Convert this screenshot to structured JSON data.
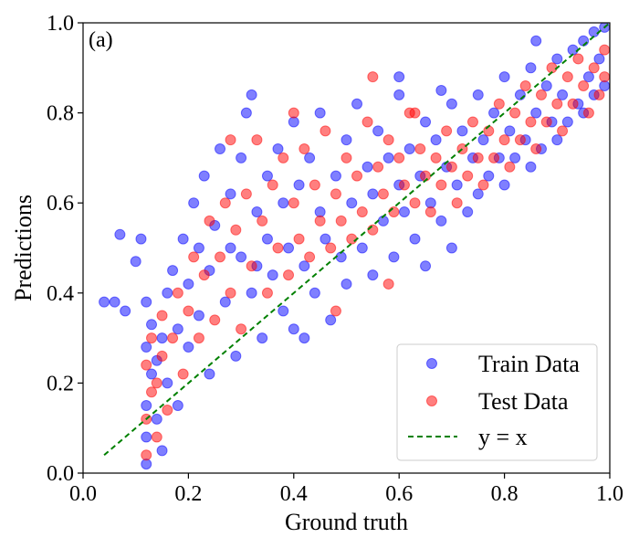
{
  "chart_data": {
    "type": "scatter",
    "panel_label": "(a)",
    "xlabel": "Ground truth",
    "ylabel": "Predictions",
    "xlim": [
      0.0,
      1.0
    ],
    "ylim": [
      0.0,
      1.0
    ],
    "xticks": [
      "0.0",
      "0.2",
      "0.4",
      "0.6",
      "0.8",
      "1.0"
    ],
    "yticks": [
      "0.0",
      "0.2",
      "0.4",
      "0.6",
      "0.8",
      "1.0"
    ],
    "grid": false,
    "legend_position": "lower-right",
    "series": [
      {
        "name": "Train Data",
        "color": "#0000ff",
        "marker": "circle",
        "alpha": 0.5,
        "points": [
          [
            0.12,
            0.02
          ],
          [
            0.12,
            0.08
          ],
          [
            0.12,
            0.15
          ],
          [
            0.13,
            0.22
          ],
          [
            0.12,
            0.28
          ],
          [
            0.13,
            0.33
          ],
          [
            0.12,
            0.38
          ],
          [
            0.14,
            0.12
          ],
          [
            0.14,
            0.25
          ],
          [
            0.15,
            0.05
          ],
          [
            0.15,
            0.3
          ],
          [
            0.16,
            0.2
          ],
          [
            0.16,
            0.4
          ],
          [
            0.17,
            0.45
          ],
          [
            0.18,
            0.15
          ],
          [
            0.18,
            0.32
          ],
          [
            0.19,
            0.52
          ],
          [
            0.2,
            0.28
          ],
          [
            0.2,
            0.42
          ],
          [
            0.21,
            0.6
          ],
          [
            0.22,
            0.35
          ],
          [
            0.22,
            0.5
          ],
          [
            0.23,
            0.66
          ],
          [
            0.24,
            0.22
          ],
          [
            0.24,
            0.45
          ],
          [
            0.25,
            0.55
          ],
          [
            0.26,
            0.72
          ],
          [
            0.27,
            0.38
          ],
          [
            0.28,
            0.5
          ],
          [
            0.28,
            0.62
          ],
          [
            0.29,
            0.26
          ],
          [
            0.3,
            0.48
          ],
          [
            0.3,
            0.7
          ],
          [
            0.31,
            0.8
          ],
          [
            0.32,
            0.84
          ],
          [
            0.32,
            0.4
          ],
          [
            0.33,
            0.58
          ],
          [
            0.34,
            0.3
          ],
          [
            0.35,
            0.52
          ],
          [
            0.35,
            0.66
          ],
          [
            0.36,
            0.44
          ],
          [
            0.37,
            0.72
          ],
          [
            0.38,
            0.36
          ],
          [
            0.38,
            0.6
          ],
          [
            0.39,
            0.5
          ],
          [
            0.4,
            0.78
          ],
          [
            0.4,
            0.32
          ],
          [
            0.41,
            0.64
          ],
          [
            0.42,
            0.46
          ],
          [
            0.43,
            0.7
          ],
          [
            0.44,
            0.4
          ],
          [
            0.45,
            0.58
          ],
          [
            0.45,
            0.8
          ],
          [
            0.46,
            0.52
          ],
          [
            0.47,
            0.34
          ],
          [
            0.48,
            0.66
          ],
          [
            0.49,
            0.48
          ],
          [
            0.5,
            0.74
          ],
          [
            0.5,
            0.42
          ],
          [
            0.51,
            0.6
          ],
          [
            0.52,
            0.82
          ],
          [
            0.53,
            0.5
          ],
          [
            0.54,
            0.68
          ],
          [
            0.55,
            0.44
          ],
          [
            0.55,
            0.62
          ],
          [
            0.56,
            0.76
          ],
          [
            0.57,
            0.56
          ],
          [
            0.58,
            0.7
          ],
          [
            0.59,
            0.48
          ],
          [
            0.6,
            0.64
          ],
          [
            0.6,
            0.84
          ],
          [
            0.61,
            0.58
          ],
          [
            0.62,
            0.72
          ],
          [
            0.63,
            0.52
          ],
          [
            0.64,
            0.66
          ],
          [
            0.65,
            0.78
          ],
          [
            0.65,
            0.46
          ],
          [
            0.66,
            0.6
          ],
          [
            0.67,
            0.74
          ],
          [
            0.68,
            0.56
          ],
          [
            0.69,
            0.68
          ],
          [
            0.7,
            0.82
          ],
          [
            0.7,
            0.5
          ],
          [
            0.71,
            0.64
          ],
          [
            0.72,
            0.76
          ],
          [
            0.73,
            0.58
          ],
          [
            0.74,
            0.7
          ],
          [
            0.75,
            0.84
          ],
          [
            0.75,
            0.62
          ],
          [
            0.76,
            0.74
          ],
          [
            0.77,
            0.66
          ],
          [
            0.78,
            0.8
          ],
          [
            0.79,
            0.7
          ],
          [
            0.8,
            0.88
          ],
          [
            0.8,
            0.64
          ],
          [
            0.81,
            0.76
          ],
          [
            0.82,
            0.7
          ],
          [
            0.83,
            0.84
          ],
          [
            0.84,
            0.74
          ],
          [
            0.85,
            0.9
          ],
          [
            0.85,
            0.68
          ],
          [
            0.86,
            0.8
          ],
          [
            0.87,
            0.72
          ],
          [
            0.88,
            0.86
          ],
          [
            0.89,
            0.78
          ],
          [
            0.9,
            0.92
          ],
          [
            0.9,
            0.74
          ],
          [
            0.91,
            0.84
          ],
          [
            0.92,
            0.78
          ],
          [
            0.93,
            0.94
          ],
          [
            0.94,
            0.82
          ],
          [
            0.95,
            0.96
          ],
          [
            0.95,
            0.8
          ],
          [
            0.96,
            0.88
          ],
          [
            0.97,
            0.98
          ],
          [
            0.97,
            0.84
          ],
          [
            0.98,
            0.92
          ],
          [
            0.99,
            0.86
          ],
          [
            0.99,
            0.99
          ],
          [
            0.04,
            0.38
          ],
          [
            0.06,
            0.38
          ],
          [
            0.08,
            0.36
          ],
          [
            0.07,
            0.53
          ],
          [
            0.1,
            0.47
          ],
          [
            0.11,
            0.52
          ],
          [
            0.33,
            0.46
          ],
          [
            0.42,
            0.3
          ],
          [
            0.6,
            0.88
          ],
          [
            0.68,
            0.85
          ],
          [
            0.86,
            0.96
          ]
        ]
      },
      {
        "name": "Test Data",
        "color": "#ff0000",
        "marker": "circle",
        "alpha": 0.5,
        "points": [
          [
            0.12,
            0.04
          ],
          [
            0.12,
            0.12
          ],
          [
            0.13,
            0.18
          ],
          [
            0.12,
            0.24
          ],
          [
            0.13,
            0.3
          ],
          [
            0.14,
            0.08
          ],
          [
            0.14,
            0.2
          ],
          [
            0.15,
            0.26
          ],
          [
            0.15,
            0.35
          ],
          [
            0.16,
            0.14
          ],
          [
            0.17,
            0.3
          ],
          [
            0.18,
            0.4
          ],
          [
            0.19,
            0.22
          ],
          [
            0.2,
            0.36
          ],
          [
            0.21,
            0.48
          ],
          [
            0.22,
            0.3
          ],
          [
            0.23,
            0.44
          ],
          [
            0.24,
            0.56
          ],
          [
            0.25,
            0.34
          ],
          [
            0.26,
            0.48
          ],
          [
            0.27,
            0.6
          ],
          [
            0.28,
            0.4
          ],
          [
            0.29,
            0.54
          ],
          [
            0.3,
            0.32
          ],
          [
            0.31,
            0.62
          ],
          [
            0.32,
            0.46
          ],
          [
            0.33,
            0.74
          ],
          [
            0.34,
            0.56
          ],
          [
            0.35,
            0.4
          ],
          [
            0.36,
            0.64
          ],
          [
            0.37,
            0.5
          ],
          [
            0.38,
            0.7
          ],
          [
            0.39,
            0.44
          ],
          [
            0.4,
            0.6
          ],
          [
            0.41,
            0.52
          ],
          [
            0.42,
            0.72
          ],
          [
            0.43,
            0.48
          ],
          [
            0.44,
            0.64
          ],
          [
            0.45,
            0.56
          ],
          [
            0.46,
            0.76
          ],
          [
            0.47,
            0.5
          ],
          [
            0.48,
            0.62
          ],
          [
            0.49,
            0.56
          ],
          [
            0.5,
            0.7
          ],
          [
            0.51,
            0.52
          ],
          [
            0.52,
            0.66
          ],
          [
            0.53,
            0.58
          ],
          [
            0.54,
            0.78
          ],
          [
            0.55,
            0.54
          ],
          [
            0.56,
            0.68
          ],
          [
            0.57,
            0.62
          ],
          [
            0.58,
            0.74
          ],
          [
            0.59,
            0.58
          ],
          [
            0.6,
            0.7
          ],
          [
            0.61,
            0.64
          ],
          [
            0.62,
            0.8
          ],
          [
            0.63,
            0.6
          ],
          [
            0.64,
            0.72
          ],
          [
            0.65,
            0.66
          ],
          [
            0.66,
            0.58
          ],
          [
            0.67,
            0.7
          ],
          [
            0.68,
            0.64
          ],
          [
            0.69,
            0.76
          ],
          [
            0.7,
            0.68
          ],
          [
            0.71,
            0.6
          ],
          [
            0.72,
            0.72
          ],
          [
            0.73,
            0.66
          ],
          [
            0.74,
            0.78
          ],
          [
            0.75,
            0.7
          ],
          [
            0.76,
            0.64
          ],
          [
            0.77,
            0.76
          ],
          [
            0.78,
            0.7
          ],
          [
            0.79,
            0.82
          ],
          [
            0.8,
            0.74
          ],
          [
            0.81,
            0.68
          ],
          [
            0.82,
            0.8
          ],
          [
            0.83,
            0.74
          ],
          [
            0.84,
            0.86
          ],
          [
            0.85,
            0.78
          ],
          [
            0.86,
            0.72
          ],
          [
            0.87,
            0.84
          ],
          [
            0.88,
            0.78
          ],
          [
            0.89,
            0.9
          ],
          [
            0.9,
            0.82
          ],
          [
            0.91,
            0.76
          ],
          [
            0.92,
            0.88
          ],
          [
            0.93,
            0.82
          ],
          [
            0.94,
            0.92
          ],
          [
            0.95,
            0.86
          ],
          [
            0.96,
            0.8
          ],
          [
            0.97,
            0.9
          ],
          [
            0.98,
            0.84
          ],
          [
            0.99,
            0.94
          ],
          [
            0.99,
            0.88
          ],
          [
            0.55,
            0.88
          ],
          [
            0.63,
            0.8
          ],
          [
            0.48,
            0.36
          ],
          [
            0.58,
            0.42
          ],
          [
            0.4,
            0.8
          ],
          [
            0.28,
            0.74
          ]
        ]
      }
    ],
    "reference_line": {
      "name": "y = x",
      "color": "#008000",
      "style": "dashed",
      "x": [
        0.04,
        1.0
      ],
      "y": [
        0.04,
        1.0
      ]
    }
  }
}
